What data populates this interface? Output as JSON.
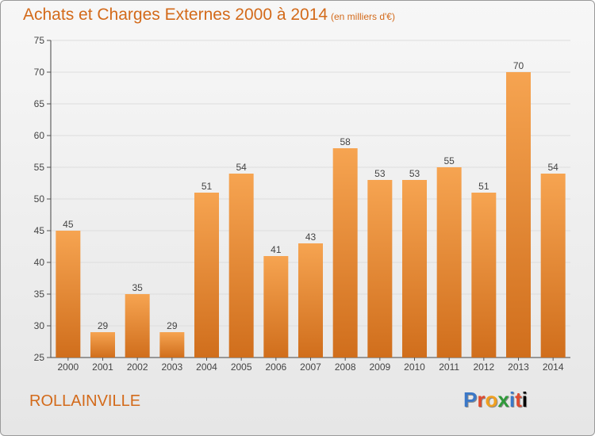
{
  "header": {
    "title": "Achats et Charges Externes 2000 à 2014",
    "subtitle": "(en milliers d'€)"
  },
  "footer": {
    "place": "ROLLAINVILLE",
    "logo": "Proxiti"
  },
  "colors": {
    "bar_light": "#f6a451",
    "bar_dark": "#d06e1c",
    "title": "#d36a1a"
  },
  "chart_data": {
    "type": "bar",
    "title": "Achats et Charges Externes 2000 à 2014",
    "subtitle": "(en milliers d'€)",
    "categories": [
      "2000",
      "2001",
      "2002",
      "2003",
      "2004",
      "2005",
      "2006",
      "2007",
      "2008",
      "2009",
      "2010",
      "2011",
      "2012",
      "2013",
      "2014"
    ],
    "values": [
      45,
      29,
      35,
      29,
      51,
      54,
      41,
      43,
      58,
      53,
      53,
      55,
      51,
      70,
      54
    ],
    "ylim": [
      25,
      75
    ],
    "yticks": [
      25,
      30,
      35,
      40,
      45,
      50,
      55,
      60,
      65,
      70,
      75
    ],
    "grid": true,
    "xlabel": "",
    "ylabel": ""
  }
}
